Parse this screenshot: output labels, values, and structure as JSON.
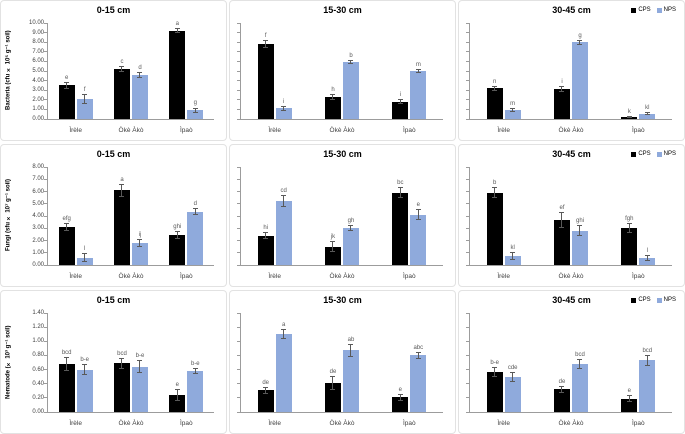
{
  "figure_title": "Soil microbial populations by depth",
  "colors": {
    "cps": "#000000",
    "nps": "#8faadc",
    "axis": "#9c9c9c",
    "letter": "#595959"
  },
  "legend": {
    "items": [
      {
        "label": "CPS",
        "color": "#000000"
      },
      {
        "label": "NPS",
        "color": "#8faadc"
      }
    ]
  },
  "categories": [
    "Ìrèle",
    "Òkè Àkò",
    "Ìpaò"
  ],
  "chart_data": [
    {
      "type": "bar",
      "id": "bacteria-0-15",
      "title": "0-15 cm",
      "ylabel": "Bacteria (cfu × 10⁵ g⁻¹ soil)",
      "ylim": [
        0,
        10
      ],
      "ytick_step": 1,
      "show_y_labels": true,
      "show_legend": false,
      "grid": false,
      "categories": [
        "Ìrèle",
        "Òkè Àkò",
        "Ìpaò"
      ],
      "series": [
        {
          "name": "CPS",
          "values": [
            3.5,
            5.2,
            9.2
          ],
          "errors": [
            0.35,
            0.3,
            0.25
          ],
          "letters": [
            "e",
            "c",
            "a"
          ]
        },
        {
          "name": "NPS",
          "values": [
            2.1,
            4.6,
            0.9
          ],
          "errors": [
            0.5,
            0.3,
            0.3
          ],
          "letters": [
            "f",
            "d",
            "g"
          ]
        }
      ]
    },
    {
      "type": "bar",
      "id": "bacteria-15-30",
      "title": "15-30 cm",
      "ylabel": "",
      "ylim": [
        0,
        10
      ],
      "ytick_step": 1,
      "show_y_labels": false,
      "show_legend": false,
      "grid": false,
      "categories": [
        "Ìrèle",
        "Òkè Àkò",
        "Ìpaò"
      ],
      "series": [
        {
          "name": "CPS",
          "values": [
            7.8,
            2.3,
            1.8
          ],
          "errors": [
            0.4,
            0.35,
            0.25
          ],
          "letters": [
            "f",
            "h",
            "i"
          ]
        },
        {
          "name": "NPS",
          "values": [
            1.1,
            5.9,
            5.0
          ],
          "errors": [
            0.25,
            0.2,
            0.2
          ],
          "letters": [
            "i",
            "b",
            "m"
          ]
        }
      ]
    },
    {
      "type": "bar",
      "id": "bacteria-30-45",
      "title": "30-45 cm",
      "ylabel": "",
      "ylim": [
        0,
        10
      ],
      "ytick_step": 1,
      "show_y_labels": false,
      "show_legend": true,
      "grid": false,
      "categories": [
        "Ìrèle",
        "Òkè Àkò",
        "Ìpaò"
      ],
      "series": [
        {
          "name": "CPS",
          "values": [
            3.2,
            3.1,
            0.2
          ],
          "errors": [
            0.25,
            0.3,
            0.08
          ],
          "letters": [
            "n",
            "i",
            "k"
          ]
        },
        {
          "name": "NPS",
          "values": [
            0.9,
            8.0,
            0.55
          ],
          "errors": [
            0.2,
            0.25,
            0.15
          ],
          "letters": [
            "m",
            "g",
            "kl"
          ]
        }
      ]
    },
    {
      "type": "bar",
      "id": "fungi-0-15",
      "title": "0-15 cm",
      "ylabel": "Fungi (sfu × 10⁷ g⁻¹ soil)",
      "ylim": [
        0,
        8
      ],
      "ytick_step": 1,
      "show_y_labels": true,
      "show_legend": false,
      "grid": false,
      "categories": [
        "Ìrèle",
        "Òkè Àkò",
        "Ìpaò"
      ],
      "series": [
        {
          "name": "CPS",
          "values": [
            3.1,
            6.1,
            2.45
          ],
          "errors": [
            0.35,
            0.55,
            0.3
          ],
          "letters": [
            "efg",
            "a",
            "ghi"
          ]
        },
        {
          "name": "NPS",
          "values": [
            0.6,
            1.8,
            4.35
          ],
          "errors": [
            0.35,
            0.3,
            0.3
          ],
          "letters": [
            "l",
            "ij",
            "d"
          ]
        }
      ]
    },
    {
      "type": "bar",
      "id": "fungi-15-30",
      "title": "15-30 cm",
      "ylabel": "",
      "ylim": [
        0,
        8
      ],
      "ytick_step": 1,
      "show_y_labels": false,
      "show_legend": false,
      "grid": false,
      "categories": [
        "Ìrèle",
        "Òkè Àkò",
        "Ìpaò"
      ],
      "series": [
        {
          "name": "CPS",
          "values": [
            2.4,
            1.5,
            5.9
          ],
          "errors": [
            0.3,
            0.45,
            0.45
          ],
          "letters": [
            "hi",
            "jk",
            "bc"
          ]
        },
        {
          "name": "NPS",
          "values": [
            5.2,
            3.0,
            4.1
          ],
          "errors": [
            0.5,
            0.25,
            0.45
          ],
          "letters": [
            "cd",
            "gh",
            "e"
          ]
        }
      ]
    },
    {
      "type": "bar",
      "id": "fungi-30-45",
      "title": "30-45 cm",
      "ylabel": "",
      "ylim": [
        0,
        8
      ],
      "ytick_step": 1,
      "show_y_labels": false,
      "show_legend": true,
      "grid": false,
      "categories": [
        "Ìrèle",
        "Òkè Àkò",
        "Ìpaò"
      ],
      "series": [
        {
          "name": "CPS",
          "values": [
            5.9,
            3.7,
            3.0
          ],
          "errors": [
            0.45,
            0.65,
            0.4
          ],
          "letters": [
            "b",
            "ef",
            "fgh"
          ]
        },
        {
          "name": "NPS",
          "values": [
            0.75,
            2.8,
            0.6
          ],
          "errors": [
            0.3,
            0.45,
            0.25
          ],
          "letters": [
            "kl",
            "ghi",
            "l"
          ]
        }
      ]
    },
    {
      "type": "bar",
      "id": "nematode-0-15",
      "title": "0-15 cm",
      "ylabel": "Nematode (× 10³ g⁻¹ soil)",
      "ylim": [
        0,
        1.4
      ],
      "ytick_step": 0.2,
      "show_y_labels": true,
      "show_legend": false,
      "grid": false,
      "categories": [
        "Ìrèle",
        "Òkè Àkò",
        "Ìpaò"
      ],
      "series": [
        {
          "name": "CPS",
          "values": [
            0.68,
            0.69,
            0.24
          ],
          "errors": [
            0.1,
            0.08,
            0.09
          ],
          "letters": [
            "bcd",
            "bcd",
            "e"
          ]
        },
        {
          "name": "NPS",
          "values": [
            0.6,
            0.64,
            0.58
          ],
          "errors": [
            0.08,
            0.09,
            0.04
          ],
          "letters": [
            "b-e",
            "b-e",
            "b-e"
          ]
        }
      ]
    },
    {
      "type": "bar",
      "id": "nematode-15-30",
      "title": "15-30 cm",
      "ylabel": "",
      "ylim": [
        0,
        1.4
      ],
      "ytick_step": 0.2,
      "show_y_labels": false,
      "show_legend": false,
      "grid": false,
      "categories": [
        "Ìrèle",
        "Òkè Àkò",
        "Ìpaò"
      ],
      "series": [
        {
          "name": "CPS",
          "values": [
            0.31,
            0.41,
            0.21
          ],
          "errors": [
            0.05,
            0.1,
            0.05
          ],
          "letters": [
            "de",
            "de",
            "e"
          ]
        },
        {
          "name": "NPS",
          "values": [
            1.1,
            0.87,
            0.8
          ],
          "errors": [
            0.07,
            0.09,
            0.05
          ],
          "letters": [
            "a",
            "ab",
            "abc"
          ]
        }
      ]
    },
    {
      "type": "bar",
      "id": "nematode-30-45",
      "title": "30-45 cm",
      "ylabel": "",
      "ylim": [
        0,
        1.4
      ],
      "ytick_step": 0.2,
      "show_y_labels": false,
      "show_legend": true,
      "grid": false,
      "categories": [
        "Ìrèle",
        "Òkè Àkò",
        "Ìpaò"
      ],
      "series": [
        {
          "name": "CPS",
          "values": [
            0.57,
            0.32,
            0.19
          ],
          "errors": [
            0.07,
            0.05,
            0.05
          ],
          "letters": [
            "b-e",
            "de",
            "e"
          ]
        },
        {
          "name": "NPS",
          "values": [
            0.49,
            0.68,
            0.73
          ],
          "errors": [
            0.07,
            0.07,
            0.08
          ],
          "letters": [
            "cde",
            "bcd",
            "bcd"
          ]
        }
      ]
    }
  ]
}
